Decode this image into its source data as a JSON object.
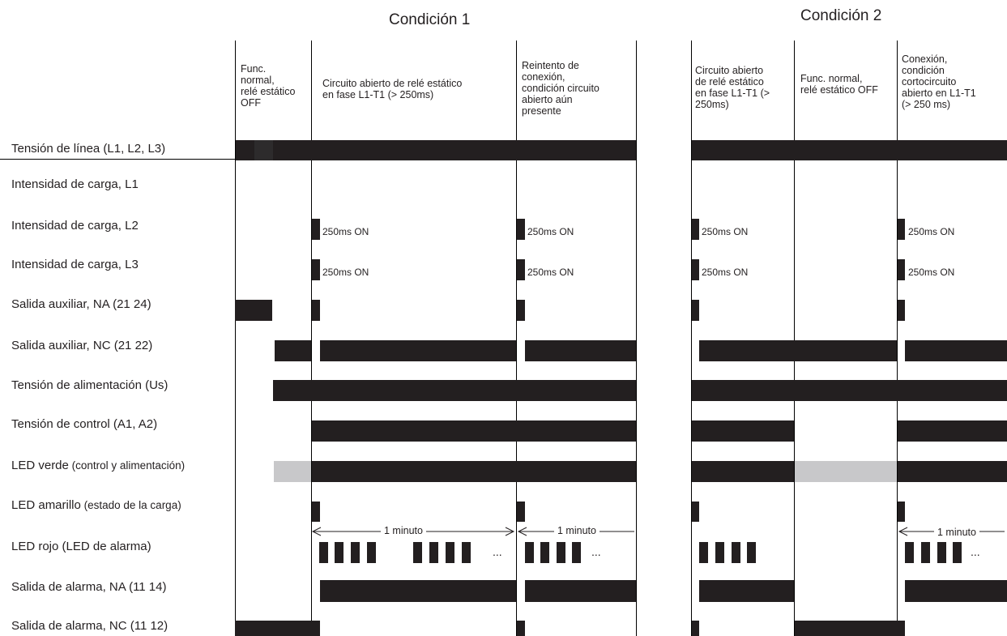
{
  "titles": {
    "cond1": "Condición 1",
    "cond2": "Condición 2"
  },
  "columns": {
    "c1a": [
      "Func.",
      "normal,",
      "relé estático",
      "OFF"
    ],
    "c1b": [
      "Circuito abierto de relé estático",
      "en fase L1-T1 (> 250ms)"
    ],
    "c1c": [
      "Reintento de",
      "conexión,",
      "condición circuito",
      "abierto aún",
      "presente"
    ],
    "c2a": [
      "Circuito abierto",
      "de relé estático",
      "en fase L1-T1 (>",
      "250ms)"
    ],
    "c2b": [
      "Func. normal,",
      "relé estático OFF"
    ],
    "c2c": [
      "Conexión,",
      "condición",
      "cortocircuito",
      "abierto en L1-T1",
      "(> 250 ms)"
    ]
  },
  "rows": [
    {
      "label": "Tensión de línea (L1, L2, L3)"
    },
    {
      "label": "Intensidad de carga, L1"
    },
    {
      "label": "Intensidad de carga, L2"
    },
    {
      "label": "Intensidad de carga, L3"
    },
    {
      "label": "Salida auxiliar, NA (21 24)"
    },
    {
      "label": "Salida auxiliar, NC (21 22)"
    },
    {
      "label": "Tensión de alimentación (Us)"
    },
    {
      "label": "Tensión de control (A1, A2)"
    },
    {
      "label_main": "LED verde",
      "label_small": " (control y alimentación)"
    },
    {
      "label_main": "LED amarillo",
      "label_small": " (estado de la carga)"
    },
    {
      "label": "LED rojo (LED de alarma)"
    },
    {
      "label": "Salida de alarma, NA (11 14)"
    },
    {
      "label": "Salida de alarma, NC (11 12)"
    }
  ],
  "marks": {
    "pulse": "250ms ON",
    "minute": "1 minuto",
    "ellipsis": "..."
  },
  "colors": {
    "signal": "#231f20",
    "led_off": "#c8c8ca",
    "line": "#000000"
  }
}
